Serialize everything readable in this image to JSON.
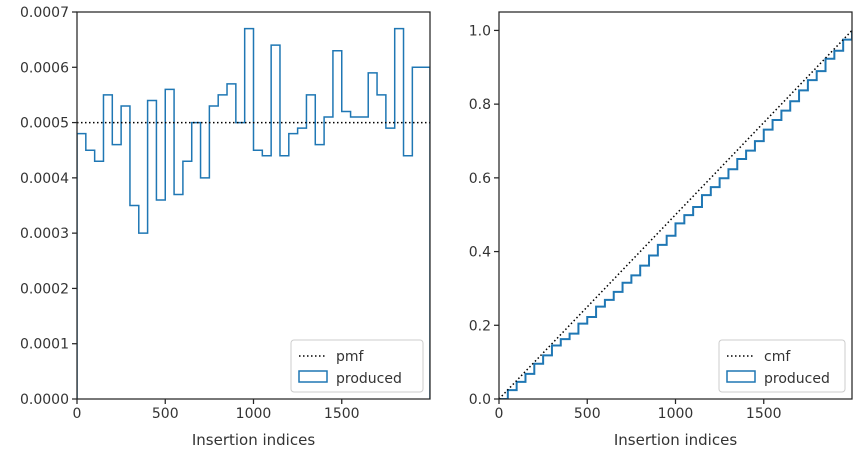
{
  "chart_data": [
    {
      "type": "line",
      "subtype": "step-histogram",
      "title": "",
      "xlabel": "Insertion indices",
      "ylabel": "",
      "xlim": [
        0,
        2000
      ],
      "ylim": [
        0,
        0.0007
      ],
      "xticks": [
        0,
        500,
        1000,
        1500
      ],
      "xtick_labels": [
        "0",
        "500",
        "1000",
        "1500"
      ],
      "yticks": [
        0,
        0.0001,
        0.0002,
        0.0003,
        0.0004,
        0.0005,
        0.0006,
        0.0007
      ],
      "ytick_labels": [
        "0.0000",
        "0.0001",
        "0.0002",
        "0.0003",
        "0.0004",
        "0.0005",
        "0.0006",
        "0.0007"
      ],
      "grid": false,
      "legend_position": "lower-right",
      "bin_edges": [
        0,
        50,
        100,
        150,
        200,
        250,
        300,
        350,
        400,
        450,
        500,
        550,
        600,
        650,
        700,
        750,
        800,
        850,
        900,
        950,
        1000,
        1050,
        1100,
        1150,
        1200,
        1250,
        1300,
        1350,
        1400,
        1450,
        1500,
        1550,
        1600,
        1650,
        1700,
        1750,
        1800,
        1850,
        1900,
        1950,
        2000
      ],
      "series": [
        {
          "name": "pmf",
          "style": "dotted",
          "color": "#000000",
          "x": [
            0,
            2000
          ],
          "y": [
            0.0005,
            0.0005
          ]
        },
        {
          "name": "produced",
          "style": "step",
          "color": "#1f77b4",
          "values": [
            0.00048,
            0.00045,
            0.00043,
            0.00055,
            0.00046,
            0.00053,
            0.00035,
            0.0003,
            0.00054,
            0.00036,
            0.00056,
            0.00037,
            0.00043,
            0.0005,
            0.0004,
            0.00053,
            0.00055,
            0.00057,
            0.0005,
            0.00067,
            0.00045,
            0.00044,
            0.00064,
            0.00044,
            0.00048,
            0.00049,
            0.00055,
            0.00046,
            0.00051,
            0.00063,
            0.00052,
            0.00051,
            0.00051,
            0.00059,
            0.00055,
            0.00049,
            0.00067,
            0.00044,
            0.0006,
            0.0006
          ]
        }
      ]
    },
    {
      "type": "line",
      "subtype": "cumulative-step",
      "title": "",
      "xlabel": "Insertion indices",
      "ylabel": "",
      "xlim": [
        0,
        2000
      ],
      "ylim": [
        0,
        1.05
      ],
      "xticks": [
        0,
        500,
        1000,
        1500
      ],
      "xtick_labels": [
        "0",
        "500",
        "1000",
        "1500"
      ],
      "yticks": [
        0,
        0.2,
        0.4,
        0.6,
        0.8,
        1.0
      ],
      "ytick_labels": [
        "0.0",
        "0.2",
        "0.4",
        "0.6",
        "0.8",
        "1.0"
      ],
      "grid": false,
      "legend_position": "lower-right",
      "series": [
        {
          "name": "cmf",
          "style": "dotted",
          "color": "#000000",
          "x": [
            0,
            2000
          ],
          "y": [
            0,
            1.0
          ]
        },
        {
          "name": "produced",
          "style": "step",
          "color": "#1f77b4",
          "x": [
            0,
            50,
            100,
            150,
            200,
            250,
            300,
            350,
            400,
            450,
            500,
            550,
            600,
            650,
            700,
            750,
            800,
            850,
            900,
            950,
            1000,
            1050,
            1100,
            1150,
            1200,
            1250,
            1300,
            1350,
            1400,
            1450,
            1500,
            1550,
            1600,
            1650,
            1700,
            1750,
            1800,
            1850,
            1900,
            1950,
            2000
          ],
          "y": [
            0,
            0.024,
            0.0465,
            0.068,
            0.0955,
            0.1185,
            0.145,
            0.1625,
            0.1775,
            0.2045,
            0.2225,
            0.2505,
            0.269,
            0.2905,
            0.3155,
            0.3355,
            0.362,
            0.3895,
            0.418,
            0.443,
            0.4765,
            0.499,
            0.521,
            0.553,
            0.575,
            0.599,
            0.6235,
            0.651,
            0.674,
            0.6995,
            0.731,
            0.757,
            0.7825,
            0.808,
            0.8375,
            0.865,
            0.8895,
            0.923,
            0.945,
            0.975,
            1.0
          ]
        }
      ]
    }
  ]
}
